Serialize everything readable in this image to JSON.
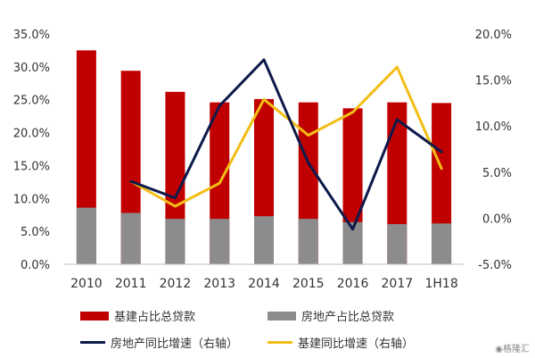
{
  "chart_data": {
    "type": "bar",
    "categories": [
      "2010",
      "2011",
      "2012",
      "2013",
      "2014",
      "2015",
      "2016",
      "2017",
      "1H18"
    ],
    "left_axis": {
      "min": 0,
      "max": 35,
      "step": 5,
      "ticks": [
        "0.0%",
        "5.0%",
        "10.0%",
        "15.0%",
        "20.0%",
        "25.0%",
        "30.0%",
        "35.0%"
      ]
    },
    "right_axis": {
      "min": -5,
      "max": 20,
      "step": 5,
      "ticks": [
        "-5.0%",
        "0.0%",
        "5.0%",
        "10.0%",
        "15.0%",
        "20.0%"
      ]
    },
    "series": [
      {
        "name": "基建占比总贷款",
        "kind": "bar",
        "axis": "left",
        "color": "#C00000",
        "values": [
          32.5,
          29.4,
          26.2,
          24.6,
          25.1,
          24.6,
          23.7,
          24.6,
          24.5
        ]
      },
      {
        "name": "房地产占比总贷款",
        "kind": "bar",
        "axis": "left",
        "color": "#8C8C8C",
        "values": [
          8.6,
          7.8,
          6.9,
          6.9,
          7.3,
          6.9,
          6.4,
          6.1,
          6.2
        ]
      },
      {
        "name": "房地产同比增速（右轴）",
        "kind": "line",
        "axis": "right",
        "color": "#0E1A4B",
        "values": [
          null,
          4.0,
          2.2,
          12.2,
          17.2,
          6.0,
          -1.2,
          10.7,
          7.2
        ]
      },
      {
        "name": "基建同比增速（右轴）",
        "kind": "line",
        "axis": "right",
        "color": "#F2BE15",
        "values": [
          null,
          4.0,
          1.3,
          3.8,
          12.9,
          9.0,
          11.5,
          16.4,
          5.4
        ]
      }
    ],
    "grid": false,
    "legend_position": "bottom"
  },
  "legend": {
    "bar1": "基建占比总贷款",
    "bar2": "房地产占比总贷款",
    "line1": "房地产同比增速（右轴）",
    "line2": "基建同比增速（右轴）"
  },
  "watermark": "格隆汇"
}
